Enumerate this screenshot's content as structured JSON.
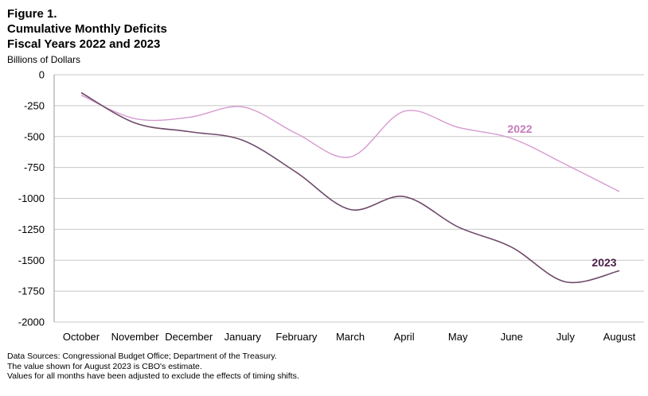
{
  "header": {
    "figure_label": "Figure 1.",
    "title_line1": "Cumulative Monthly Deficits",
    "title_line2": "Fiscal Years 2022 and 2023",
    "units": "Billions of Dollars"
  },
  "notes": [
    "Data Sources: Congressional Budget Office; Department of the Treasury.",
    "The value shown for August 2023 is CBO's estimate.",
    "Values for all months have been adjusted to exclude the effects of timing shifts."
  ],
  "chart_data": {
    "type": "line",
    "title": "Cumulative Monthly Deficits Fiscal Years 2022 and 2023",
    "ylabel": "Billions of Dollars",
    "xlabel": "",
    "ylim": [
      -2000,
      0
    ],
    "yticks": [
      0,
      -250,
      -500,
      -750,
      -1000,
      -1250,
      -1500,
      -1750,
      -2000
    ],
    "grid": true,
    "categories": [
      "October",
      "November",
      "December",
      "January",
      "February",
      "March",
      "April",
      "May",
      "June",
      "July",
      "August"
    ],
    "series": [
      {
        "name": "2022",
        "color": "#d69ad0",
        "label_color": "#c47bbd",
        "values": [
          -165,
          -355,
          -345,
          -260,
          -475,
          -665,
          -295,
          -425,
          -515,
          -725,
          -945
        ]
      },
      {
        "name": "2023",
        "color": "#6f4a6a",
        "label_color": "#4d1f47",
        "values": [
          -145,
          -390,
          -460,
          -530,
          -790,
          -1090,
          -985,
          -1230,
          -1395,
          -1675,
          -1585
        ]
      }
    ]
  }
}
